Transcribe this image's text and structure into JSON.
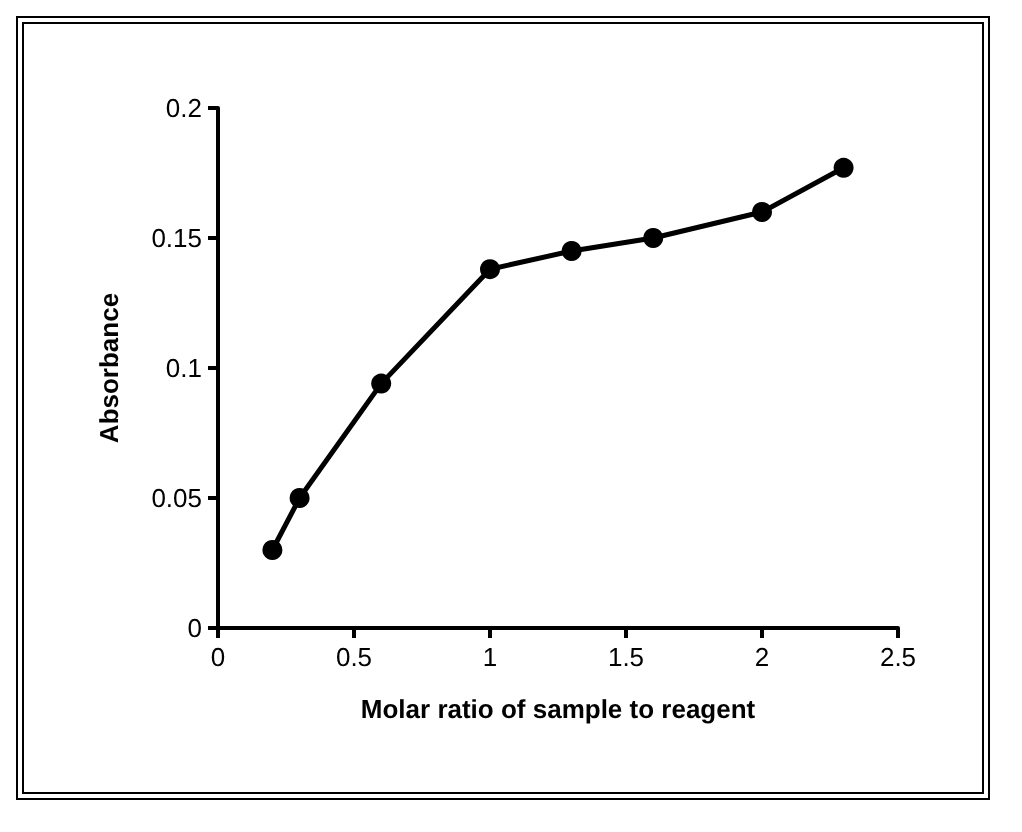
{
  "chart_data": {
    "type": "line",
    "xlabel": "Molar ratio of sample to reagent",
    "ylabel": "Absorbance",
    "x": [
      0.2,
      0.3,
      0.6,
      1,
      1.3,
      1.6,
      2,
      2.3
    ],
    "series": [
      {
        "color": "#000000",
        "values": [
          0.03,
          0.05,
          0.094,
          0.138,
          0.145,
          0.15,
          0.16,
          0.177
        ]
      }
    ],
    "xlim": [
      0,
      2.5
    ],
    "xticks": [
      0,
      0.5,
      1,
      1.5,
      2,
      2.5
    ],
    "ylim": [
      0,
      0.2
    ],
    "yticks": [
      0,
      0.05,
      0.1,
      0.15,
      0.2
    ],
    "grid": false,
    "marker": "circle",
    "line_style": "solid"
  }
}
